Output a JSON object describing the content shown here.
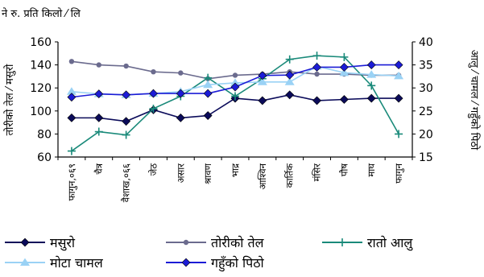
{
  "chart_data": {
    "type": "line",
    "unit_label": "ने रु. प्रति किलो ⁄ लि",
    "left_axis_label": "तोरीको तेल ⁄ मसुरो",
    "right_axis_label": "आलु ⁄ चामल ⁄ गहुँको पिठो",
    "categories": [
      "फागुन,०६९",
      "चैत्र",
      "वैशाख,०६६",
      "जेठ",
      "असार",
      "श्रावण",
      "भाद्र",
      "आश्विन",
      "कार्तिक",
      "मंसिर",
      "पौष",
      "माघ",
      "फागुन"
    ],
    "left_ylim": [
      60,
      160
    ],
    "left_yticks": [
      60,
      80,
      100,
      120,
      140,
      160
    ],
    "right_ylim": [
      15,
      40
    ],
    "right_yticks": [
      15,
      20,
      25,
      30,
      35,
      40
    ],
    "series": [
      {
        "name": "मसुरो",
        "axis": "left",
        "color": "#0b0b5a",
        "marker": "diamond",
        "values": [
          94,
          94,
          91,
          101,
          94,
          96,
          111,
          109,
          114,
          109,
          110,
          111,
          111
        ]
      },
      {
        "name": "तोरीको तेल",
        "axis": "left",
        "color": "#6b6b8e",
        "marker": "circle",
        "values": [
          143,
          140,
          139,
          134,
          133,
          128,
          131,
          132,
          134,
          132,
          132,
          131,
          131
        ]
      },
      {
        "name": "रातो आलु",
        "axis": "right",
        "color": "#1a8a7a",
        "marker": "plus",
        "values": [
          16.3,
          20.5,
          19.8,
          25.5,
          28.2,
          32.2,
          28.2,
          32,
          36.2,
          37,
          36.7,
          30.5,
          20
        ]
      },
      {
        "name": "मोटा चामल",
        "axis": "right",
        "color": "#9ad2f5",
        "marker": "triangle",
        "values": [
          29.2,
          28.7,
          28.5,
          28.8,
          29.2,
          30.7,
          31.1,
          31.3,
          31.3,
          34.7,
          33.3,
          32.9,
          32.6
        ]
      },
      {
        "name": "गहुँको पिठो",
        "axis": "right",
        "color": "#1c1cd6",
        "marker": "diamond",
        "values": [
          28,
          28.7,
          28.5,
          28.8,
          28.8,
          28.8,
          30.2,
          32.7,
          32.8,
          34.5,
          34.5,
          35,
          35
        ]
      }
    ]
  }
}
